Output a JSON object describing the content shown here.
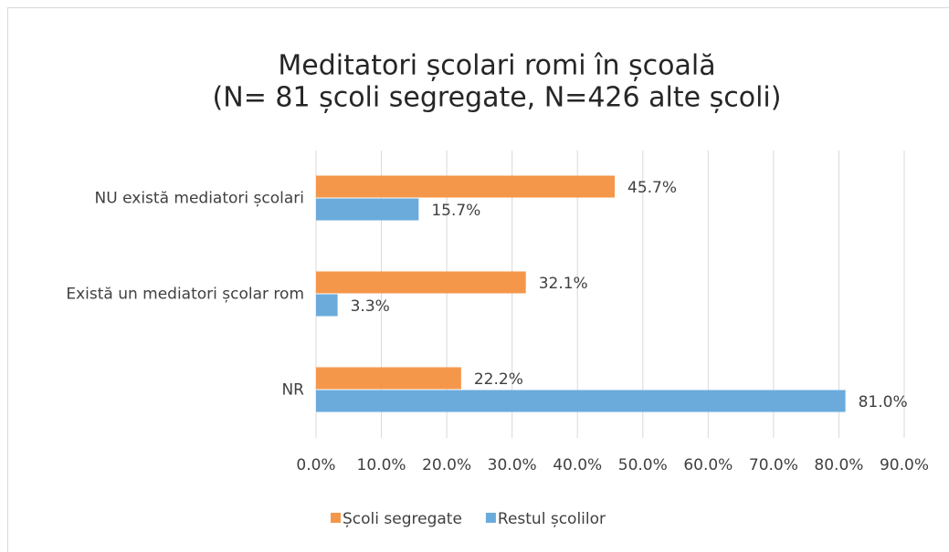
{
  "chart_data": {
    "type": "bar",
    "orientation": "horizontal",
    "title": "Meditatori școlari romi în școală",
    "subtitle": "(N= 81 școli segregate, N=426 alte școli)",
    "categories": [
      "NU există mediatori școlari",
      "Există un mediatori școlar rom",
      "NR"
    ],
    "series": [
      {
        "name": "Școli segregate",
        "color": "#f4974a",
        "values": [
          45.7,
          32.1,
          22.2
        ],
        "value_labels": [
          "45.7%",
          "32.1%",
          "22.2%"
        ]
      },
      {
        "name": "Restul școlilor",
        "color": "#6aabdc",
        "values": [
          15.7,
          3.3,
          81.0
        ],
        "value_labels": [
          "15.7%",
          "3.3%",
          "81.0%"
        ]
      }
    ],
    "xlim": [
      0,
      90
    ],
    "xticks": [
      {
        "value": 0,
        "label": "0.0%"
      },
      {
        "value": 10,
        "label": "10.0%"
      },
      {
        "value": 20,
        "label": "20.0%"
      },
      {
        "value": 30,
        "label": "30.0%"
      },
      {
        "value": 40,
        "label": "40.0%"
      },
      {
        "value": 50,
        "label": "50.0%"
      },
      {
        "value": 60,
        "label": "60.0%"
      },
      {
        "value": 70,
        "label": "70.0%"
      },
      {
        "value": 80,
        "label": "80.0%"
      },
      {
        "value": 90,
        "label": "90.0%"
      }
    ],
    "grid": true,
    "legend": "bottom"
  }
}
